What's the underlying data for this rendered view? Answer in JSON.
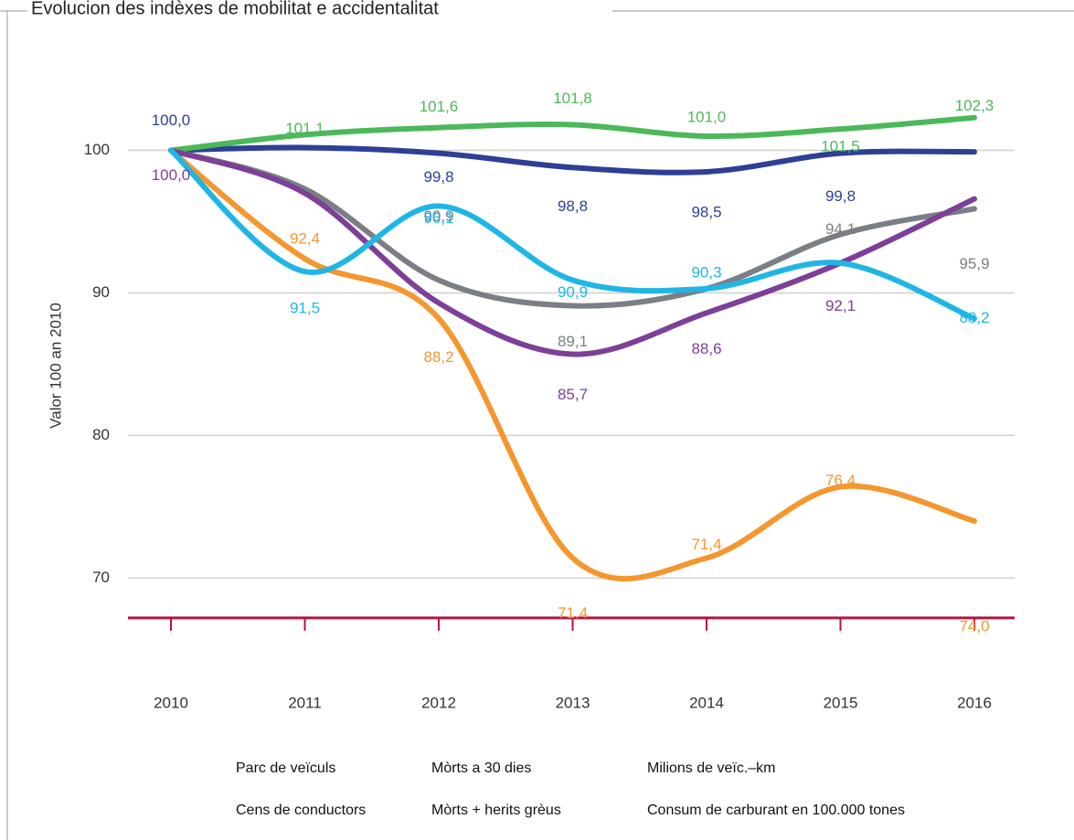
{
  "chart_data": {
    "type": "line",
    "title": "Evolucion des indèxes de mobilitat e accidentalitat",
    "y_label": "Valor 100 an 2010",
    "categories": [
      "2010",
      "2011",
      "2012",
      "2013",
      "2014",
      "2015",
      "2016"
    ],
    "ylim": [
      67.2,
      106
    ],
    "yticks": [
      70,
      80,
      90,
      100
    ],
    "grid": true,
    "series": [
      {
        "name": "Parc de veïculs",
        "color": "#2e3f96",
        "values": [
          100.0,
          100.2,
          99.8,
          98.8,
          98.5,
          99.8,
          99.9
        ],
        "value_labels": [
          "100,0",
          null,
          "99,8",
          "98,8",
          "98,5",
          "99,8",
          null
        ]
      },
      {
        "name": "Mòrts a 30 dies",
        "color": "#f5962e",
        "values": [
          100.0,
          92.4,
          88.2,
          71.4,
          71.4,
          76.4,
          74.0
        ],
        "value_labels": [
          null,
          "92,4",
          "88,2",
          "71,4",
          "71,4",
          "76,4",
          "74,0"
        ]
      },
      {
        "name": "Milions de veïc.–km",
        "color": "#7b7f85",
        "values": [
          100.0,
          97.3,
          90.9,
          89.1,
          90.3,
          94.1,
          95.9
        ],
        "value_labels": [
          null,
          null,
          "90,9",
          "89,1",
          null,
          "94,1",
          "95,9"
        ]
      },
      {
        "name": "Cens de conductors",
        "color": "#4cb85a",
        "values": [
          100.0,
          101.1,
          101.6,
          101.8,
          101.0,
          101.5,
          102.3
        ],
        "value_labels": [
          null,
          "101,1",
          "101,6",
          "101,8",
          "101,0",
          "101,5",
          "102,3"
        ]
      },
      {
        "name": "Mòrts + herits grèus",
        "color": "#7d3f98",
        "values": [
          100.0,
          97.0,
          89.3,
          85.7,
          88.6,
          92.1,
          96.6
        ],
        "value_labels": [
          "100,0",
          null,
          null,
          "85,7",
          "88,6",
          "92,1",
          null
        ]
      },
      {
        "name": "Consum de carburant en 100.000 tones",
        "color": "#1fb6e6",
        "values": [
          100.0,
          91.5,
          96.1,
          90.9,
          90.3,
          92.1,
          88.2
        ],
        "value_labels": [
          null,
          "91,5",
          "96,1",
          "90,9",
          "90,3",
          null,
          "88,2"
        ]
      }
    ]
  }
}
